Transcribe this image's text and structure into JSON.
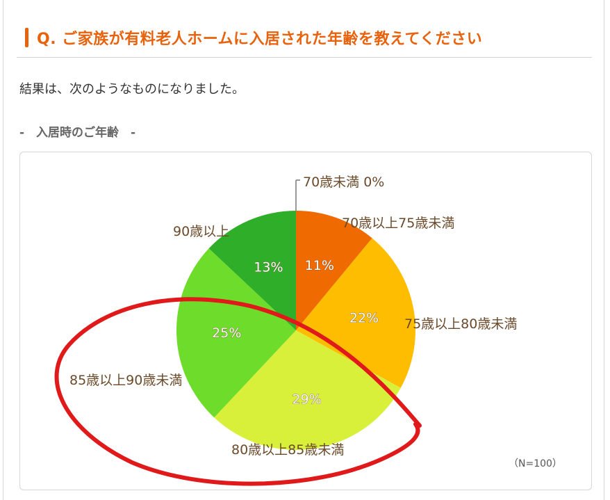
{
  "question": {
    "title": "Q. ご家族が有料老人ホームに入居された年齢を教えてください"
  },
  "intro_text": "結果は、次のようなものになりました。",
  "section_heading": "-　入居時のご年齢　-",
  "chart_data": {
    "type": "pie",
    "title": "",
    "categories": [
      "70歳未満",
      "70歳以上75歳未満",
      "75歳以上80歳未満",
      "80歳以上85歳未満",
      "85歳以上90歳未満",
      "90歳以上"
    ],
    "values": [
      0,
      11,
      22,
      29,
      25,
      13
    ],
    "value_labels": [
      "0%",
      "11%",
      "22%",
      "29%",
      "25%",
      "13%"
    ],
    "colors": [
      "#e8620c",
      "#ef6a00",
      "#ffbd00",
      "#d8f03a",
      "#6edc2a",
      "#2fae2a"
    ],
    "zero_slice_label": "70歳未満 0%",
    "sample_size": "（N=100）",
    "legend": "none",
    "annotation": {
      "type": "hand-drawn-ellipse",
      "color": "#e01a1a",
      "highlights": [
        "80歳以上85歳未満",
        "85歳以上90歳未満"
      ]
    }
  }
}
